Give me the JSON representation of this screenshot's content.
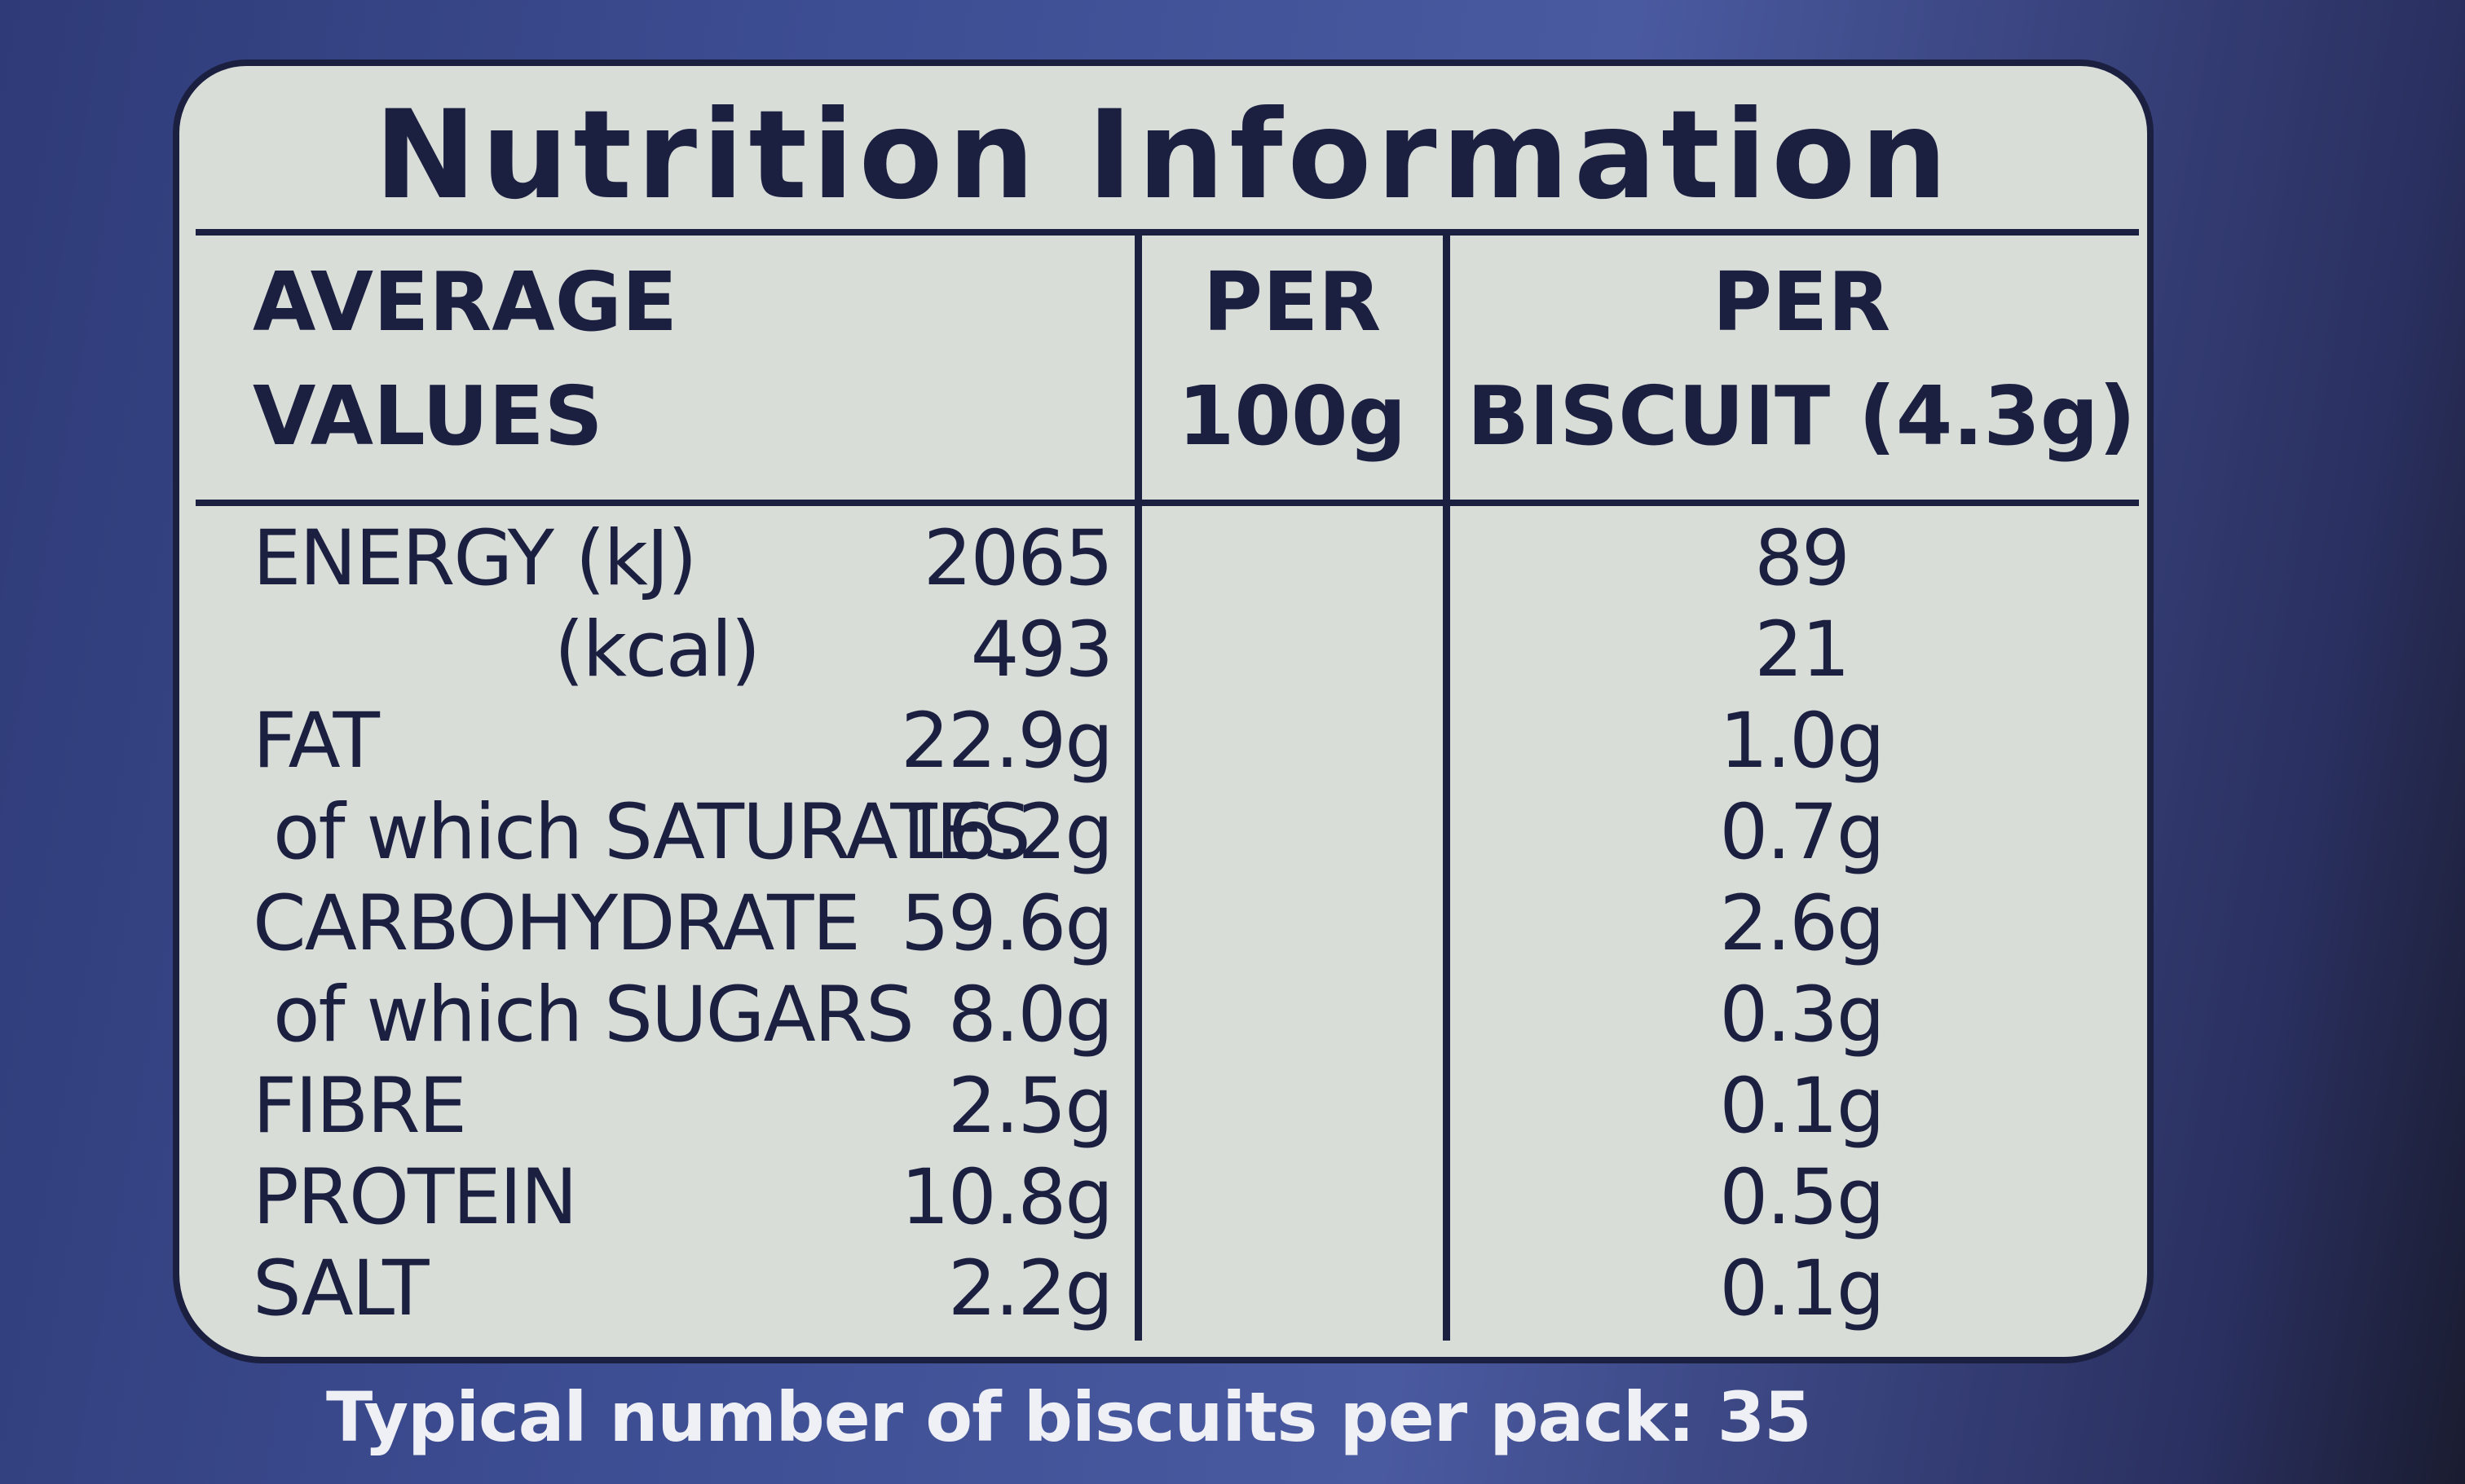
{
  "title": "Nutrition Information",
  "table": {
    "header": [
      [
        "AVERAGE",
        "VALUES"
      ],
      [
        "PER",
        "100g"
      ],
      [
        "PER",
        "BISCUIT (4.3g)"
      ]
    ],
    "rows": [
      [
        "ENERGY (kJ)",
        "2065",
        "89"
      ],
      [
        "(kcal)",
        "493",
        "21"
      ],
      [
        "FAT",
        "22.9g",
        "1.0g"
      ],
      [
        "of which SATURATES",
        "16.2g",
        "0.7g"
      ],
      [
        "CARBOHYDRATE",
        "59.6g",
        "2.6g"
      ],
      [
        "of which SUGARS",
        "8.0g",
        "0.3g"
      ],
      [
        "FIBRE",
        "2.5g",
        "0.1g"
      ],
      [
        "PROTEIN",
        "10.8g",
        "0.5g"
      ],
      [
        "SALT",
        "2.2g",
        "0.1g"
      ]
    ]
  },
  "footer": "Typical number of biscuits per pack: 35"
}
